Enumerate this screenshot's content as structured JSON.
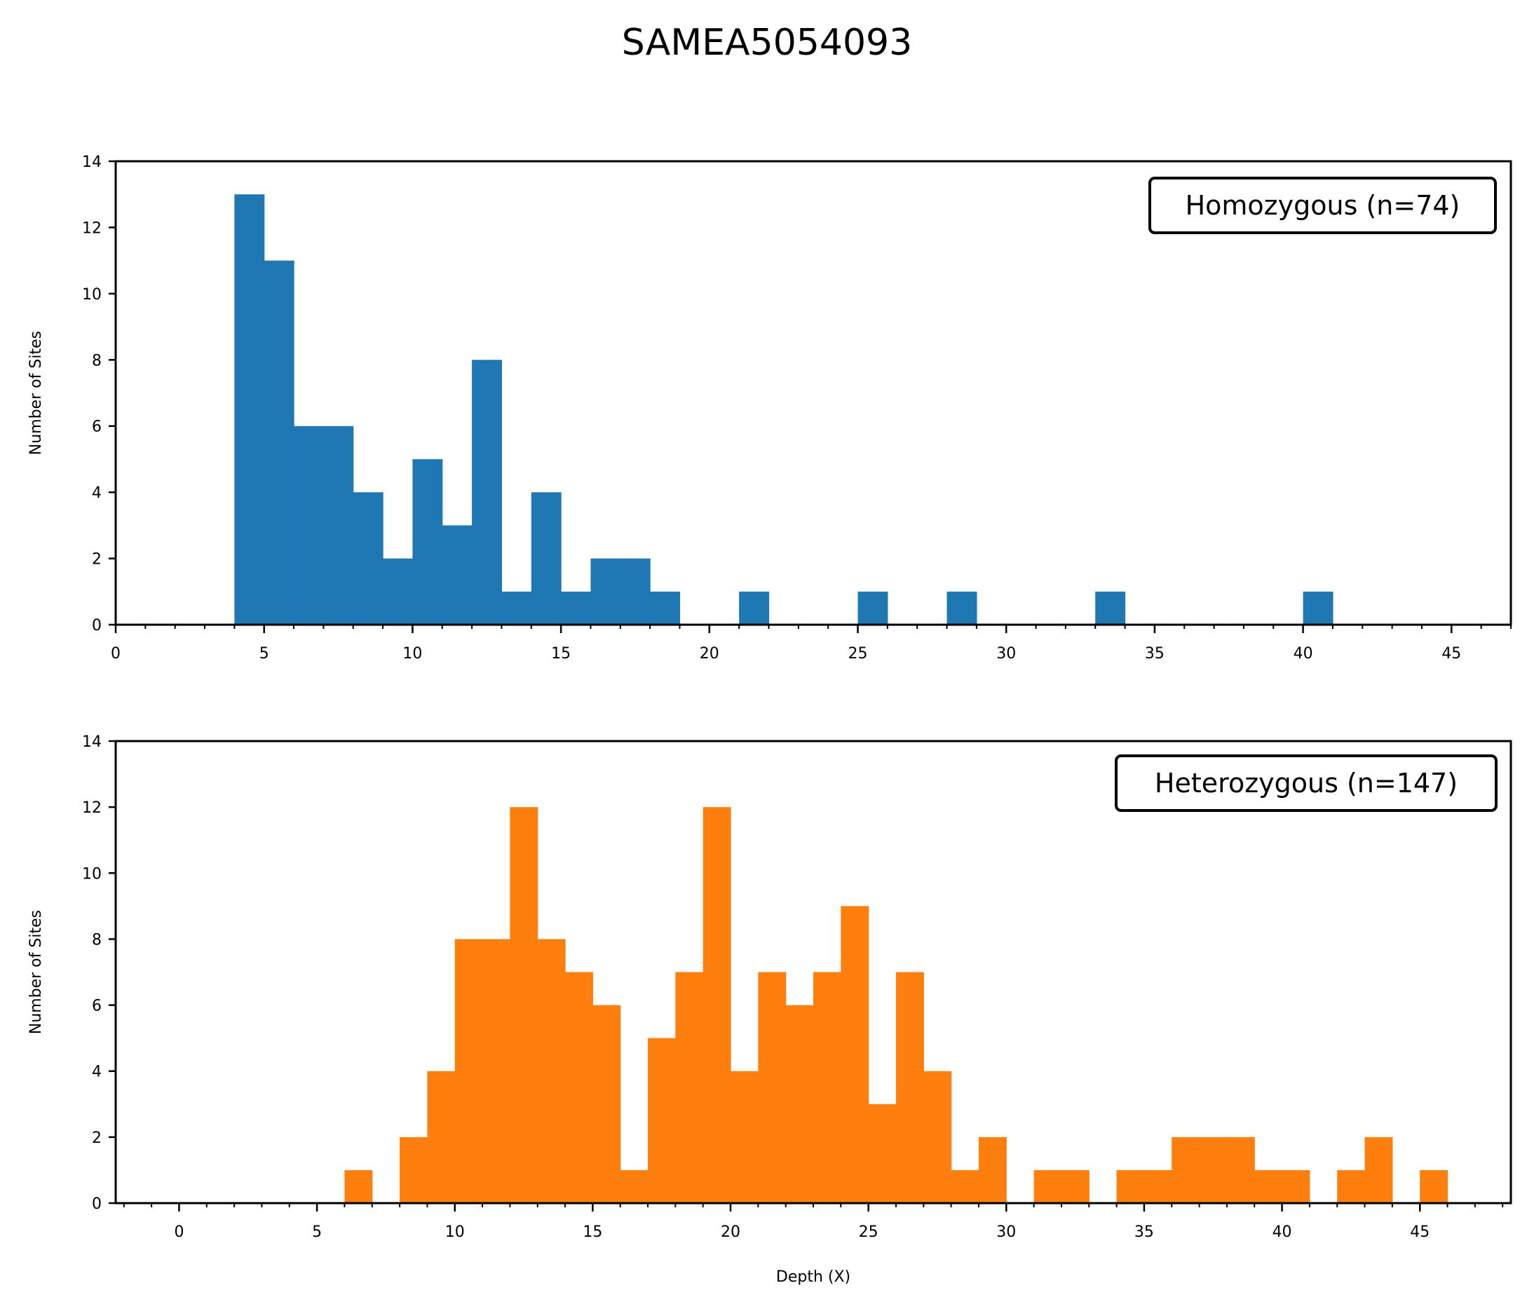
{
  "title": "SAMEA5054093",
  "chart_data": [
    {
      "type": "bar",
      "xlabel": "",
      "ylabel": "Number of Sites",
      "xlim": [
        0,
        47
      ],
      "ylim": [
        0,
        14
      ],
      "xticks": [
        0,
        5,
        10,
        15,
        20,
        25,
        30,
        35,
        40,
        45
      ],
      "yticks": [
        0,
        2,
        4,
        6,
        8,
        10,
        12,
        14
      ],
      "legend": "Homozygous (n=74)",
      "legend_position": "top-right",
      "color": "#1f77b4",
      "bin_width": 1,
      "bins": [
        {
          "x": 4,
          "count": 13
        },
        {
          "x": 5,
          "count": 11
        },
        {
          "x": 6,
          "count": 6
        },
        {
          "x": 7,
          "count": 6
        },
        {
          "x": 8,
          "count": 4
        },
        {
          "x": 9,
          "count": 2
        },
        {
          "x": 10,
          "count": 5
        },
        {
          "x": 11,
          "count": 3
        },
        {
          "x": 12,
          "count": 8
        },
        {
          "x": 13,
          "count": 1
        },
        {
          "x": 14,
          "count": 4
        },
        {
          "x": 15,
          "count": 1
        },
        {
          "x": 16,
          "count": 2
        },
        {
          "x": 17,
          "count": 2
        },
        {
          "x": 18,
          "count": 1
        },
        {
          "x": 21,
          "count": 1
        },
        {
          "x": 25,
          "count": 1
        },
        {
          "x": 28,
          "count": 1
        },
        {
          "x": 33,
          "count": 1
        },
        {
          "x": 40,
          "count": 1
        }
      ]
    },
    {
      "type": "bar",
      "xlabel": "Depth (X)",
      "ylabel": "Number of Sites",
      "xlim": [
        -2.3,
        48.3
      ],
      "ylim": [
        0,
        14
      ],
      "xticks": [
        0,
        5,
        10,
        15,
        20,
        25,
        30,
        35,
        40,
        45
      ],
      "yticks": [
        0,
        2,
        4,
        6,
        8,
        10,
        12,
        14
      ],
      "legend": "Heterozygous (n=147)",
      "legend_position": "top-right",
      "color": "#ff7f0e",
      "bin_width": 1,
      "bins": [
        {
          "x": 6,
          "count": 1
        },
        {
          "x": 8,
          "count": 2
        },
        {
          "x": 9,
          "count": 4
        },
        {
          "x": 10,
          "count": 8
        },
        {
          "x": 11,
          "count": 8
        },
        {
          "x": 12,
          "count": 12
        },
        {
          "x": 13,
          "count": 8
        },
        {
          "x": 14,
          "count": 7
        },
        {
          "x": 15,
          "count": 6
        },
        {
          "x": 16,
          "count": 1
        },
        {
          "x": 17,
          "count": 5
        },
        {
          "x": 18,
          "count": 7
        },
        {
          "x": 19,
          "count": 12
        },
        {
          "x": 20,
          "count": 4
        },
        {
          "x": 21,
          "count": 7
        },
        {
          "x": 22,
          "count": 6
        },
        {
          "x": 23,
          "count": 7
        },
        {
          "x": 24,
          "count": 9
        },
        {
          "x": 25,
          "count": 3
        },
        {
          "x": 26,
          "count": 7
        },
        {
          "x": 27,
          "count": 4
        },
        {
          "x": 28,
          "count": 1
        },
        {
          "x": 29,
          "count": 2
        },
        {
          "x": 31,
          "count": 1
        },
        {
          "x": 32,
          "count": 1
        },
        {
          "x": 34,
          "count": 1
        },
        {
          "x": 35,
          "count": 1
        },
        {
          "x": 36,
          "count": 2
        },
        {
          "x": 37,
          "count": 2
        },
        {
          "x": 38,
          "count": 2
        },
        {
          "x": 39,
          "count": 1
        },
        {
          "x": 40,
          "count": 1
        },
        {
          "x": 42,
          "count": 1
        },
        {
          "x": 43,
          "count": 2
        },
        {
          "x": 45,
          "count": 1
        }
      ]
    }
  ]
}
